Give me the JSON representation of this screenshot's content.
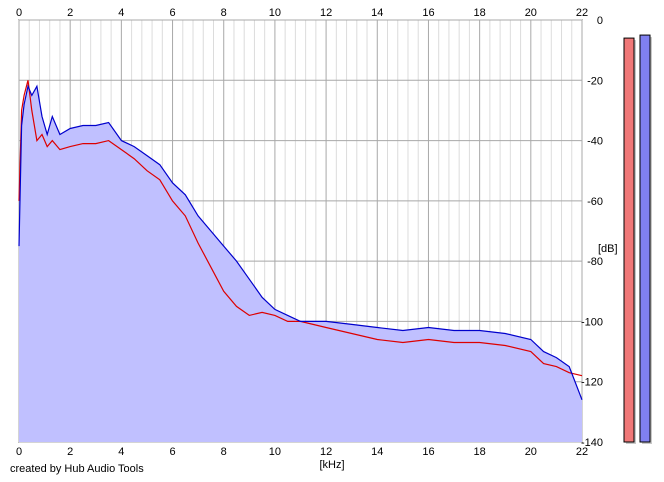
{
  "chart_data": {
    "type": "area",
    "xlabel": "[kHz]",
    "ylabel": "[dB]",
    "xlim": [
      0,
      22
    ],
    "ylim": [
      -140,
      0
    ],
    "x_ticks": [
      "0",
      "2",
      "4",
      "6",
      "8",
      "10",
      "12",
      "14",
      "16",
      "18",
      "20",
      "22"
    ],
    "y_ticks": [
      "0",
      "-20",
      "-40",
      "-60",
      "-80",
      "-100",
      "-120",
      "-140"
    ],
    "grid": true,
    "series": [
      {
        "color": "#0000cc",
        "fill": "#c0c0ff",
        "x": [
          0,
          0.1,
          0.2,
          0.35,
          0.5,
          0.7,
          0.9,
          1.1,
          1.3,
          1.6,
          2,
          2.5,
          3,
          3.5,
          4,
          4.5,
          5,
          5.5,
          6,
          6.5,
          7,
          7.5,
          8,
          8.5,
          9,
          9.5,
          10,
          10.5,
          11,
          12,
          13,
          14,
          15,
          16,
          17,
          18,
          19,
          20,
          20.5,
          21,
          21.5,
          22
        ],
        "y": [
          -75,
          -35,
          -28,
          -22,
          -25,
          -22,
          -32,
          -38,
          -32,
          -38,
          -36,
          -35,
          -35,
          -34,
          -40,
          -42,
          -45,
          -48,
          -54,
          -58,
          -65,
          -70,
          -75,
          -80,
          -86,
          -92,
          -96,
          -98,
          -100,
          -100,
          -101,
          -102,
          -103,
          -102,
          -103,
          -103,
          -104,
          -106,
          -110,
          -112,
          -115,
          -126
        ]
      },
      {
        "color": "#dd0000",
        "x": [
          0,
          0.1,
          0.2,
          0.35,
          0.5,
          0.7,
          0.9,
          1.1,
          1.3,
          1.6,
          2,
          2.5,
          3,
          3.5,
          4,
          4.5,
          5,
          5.5,
          6,
          6.5,
          7,
          7.5,
          8,
          8.5,
          9,
          9.5,
          10,
          10.5,
          11,
          12,
          13,
          14,
          15,
          16,
          17,
          18,
          19,
          20,
          20.5,
          21,
          21.5,
          22
        ],
        "y": [
          -60,
          -30,
          -25,
          -20,
          -30,
          -40,
          -38,
          -42,
          -40,
          -43,
          -42,
          -41,
          -41,
          -40,
          -43,
          -46,
          -50,
          -53,
          -60,
          -65,
          -74,
          -82,
          -90,
          -95,
          -98,
          -97,
          -98,
          -100,
          -100,
          -102,
          -104,
          -106,
          -107,
          -106,
          -107,
          -107,
          -108,
          -110,
          -114,
          -115,
          -117,
          -118
        ]
      }
    ],
    "meters": [
      {
        "color": "#f07878",
        "level_db": -6
      },
      {
        "color": "#8080f0",
        "level_db": -5
      }
    ],
    "credit": "created by Hub Audio Tools"
  }
}
